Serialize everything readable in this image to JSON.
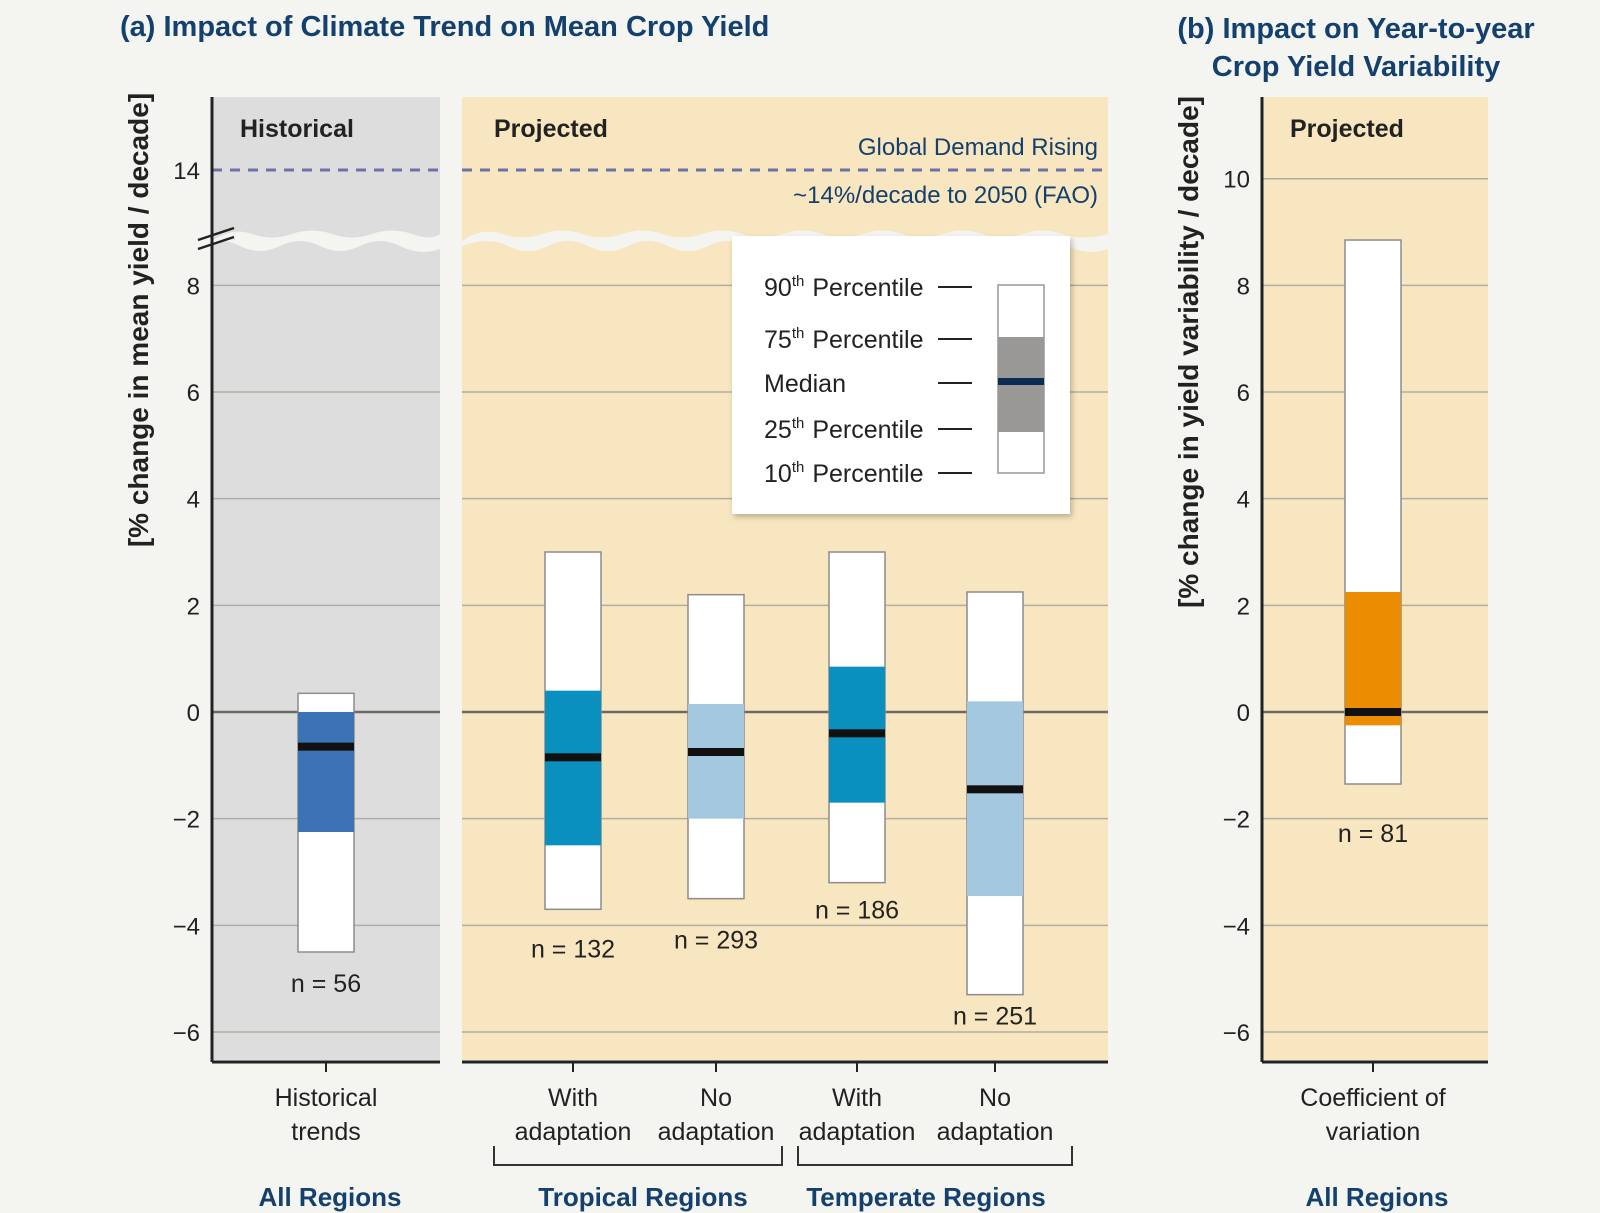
{
  "colors": {
    "historical_bg": "#dedddd",
    "projected_bg": "#f8e6c0",
    "box_face": "#ffffff",
    "historical_iqr": "#3b73b5",
    "tropical_with_iqr": "#0990bf",
    "tropical_no_iqr": "#a3c8e0",
    "temperate_with_iqr": "#0990bf",
    "temperate_no_iqr": "#a3c8e0",
    "variability_iqr": "#ec8c00",
    "legend_iqr": "#9a9797",
    "legend_median": "#0a2c50",
    "median": "#111111",
    "title": "#14406e",
    "demand_line": "#6a72a8",
    "gridline": "#b1ada2"
  },
  "chart_data": [
    {
      "type": "box",
      "title": "(a) Impact of Climate Trend on Mean Crop Yield",
      "ylabel": "[% change in mean yield / decade]",
      "yticks": [
        "14",
        "8",
        "6",
        "4",
        "2",
        "0",
        "−2",
        "−4",
        "−6"
      ],
      "ylim": [
        -6.5,
        15
      ],
      "axis_break": "between 8 and 14",
      "reference_line": {
        "value": 14,
        "label_top": "Global Demand Rising",
        "label_bottom": "~14%/decade to 2050 (FAO)"
      },
      "panels": [
        {
          "name": "Historical",
          "background": "grey"
        },
        {
          "name": "Projected",
          "background": "tan"
        }
      ],
      "boxes": [
        {
          "category": "Historical trends",
          "label_lines": [
            "Historical",
            "trends"
          ],
          "group": "All Regions",
          "p10": -4.5,
          "p25": -2.25,
          "median": -0.65,
          "p75": 0.0,
          "p90": 0.35,
          "n": "n = 56",
          "color": "historical_iqr"
        },
        {
          "category": "With adaptation",
          "label_lines": [
            "With",
            "adaptation"
          ],
          "group": "Tropical Regions",
          "p10": -3.7,
          "p25": -2.5,
          "median": -0.85,
          "p75": 0.4,
          "p90": 3.0,
          "n": "n = 132",
          "color": "tropical_with_iqr"
        },
        {
          "category": "No adaptation",
          "label_lines": [
            "No",
            "adaptation"
          ],
          "group": "Tropical Regions",
          "p10": -3.5,
          "p25": -2.0,
          "median": -0.75,
          "p75": 0.15,
          "p90": 2.2,
          "n": "n = 293",
          "color": "tropical_no_iqr"
        },
        {
          "category": "With adaptation",
          "label_lines": [
            "With",
            "adaptation"
          ],
          "group": "Temperate Regions",
          "p10": -3.2,
          "p25": -1.7,
          "median": -0.4,
          "p75": 0.85,
          "p90": 3.0,
          "n": "n = 186",
          "color": "temperate_with_iqr"
        },
        {
          "category": "No adaptation",
          "label_lines": [
            "No",
            "adaptation"
          ],
          "group": "Temperate Regions",
          "p10": -5.3,
          "p25": -3.45,
          "median": -1.45,
          "p75": 0.2,
          "p90": 2.25,
          "n": "n = 251",
          "color": "temperate_no_iqr"
        }
      ],
      "groups": [
        "All Regions",
        "Tropical Regions",
        "Temperate Regions"
      ]
    },
    {
      "type": "box",
      "title": "(b) Impact on Year-to-year Crop Yield Variability",
      "ylabel": "[% change in yield variability / decade]",
      "yticks": [
        "10",
        "8",
        "6",
        "4",
        "2",
        "0",
        "−2",
        "−4",
        "−6"
      ],
      "ylim": [
        -6.5,
        12
      ],
      "panels": [
        {
          "name": "Projected",
          "background": "tan"
        }
      ],
      "boxes": [
        {
          "category": "Coefficient of variation",
          "label_lines": [
            "Coefficient of",
            "variation"
          ],
          "group": "All Regions",
          "p10": -1.35,
          "p25": -0.25,
          "median": 0.0,
          "p75": 2.25,
          "p90": 8.85,
          "n": "n = 81",
          "color": "variability_iqr"
        }
      ],
      "groups": [
        "All Regions"
      ]
    }
  ],
  "legend": {
    "items": [
      "90",
      "75",
      "Median",
      "25",
      "10"
    ],
    "suffixes": [
      "th",
      "th",
      "",
      "th",
      "th"
    ],
    "tail": "Percentile"
  }
}
